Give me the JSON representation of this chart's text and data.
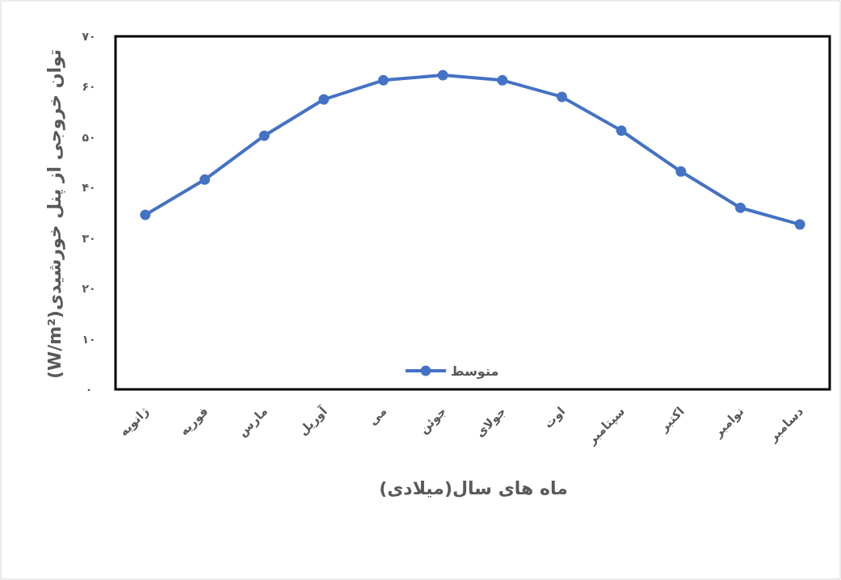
{
  "chart_data": {
    "type": "line",
    "xlabel": "ماه های سال(میلادی)",
    "ylabel": "توان خروجی از پنل خورشیدی(W/m²)",
    "categories": [
      "ژانویه",
      "فوریه",
      "مارس",
      "آوریل",
      "می",
      "جوئن",
      "جولای",
      "اوت",
      "سپتامبر",
      "اکتبر",
      "نوامبر",
      "دسامبر"
    ],
    "series": [
      {
        "name": "متوسط",
        "color": "#4472c4",
        "values": [
          34.6,
          41.6,
          50.3,
          57.5,
          61.3,
          62.3,
          61.3,
          58.0,
          51.3,
          43.2,
          36.0,
          32.7
        ]
      }
    ],
    "ylim": [
      0,
      70
    ],
    "yticks": [
      {
        "value": 0,
        "label": "۰"
      },
      {
        "value": 10,
        "label": "۱۰"
      },
      {
        "value": 20,
        "label": "۲۰"
      },
      {
        "value": 30,
        "label": "۳۰"
      },
      {
        "value": 40,
        "label": "۴۰"
      },
      {
        "value": 50,
        "label": "۵۰"
      },
      {
        "value": 60,
        "label": "۶۰"
      },
      {
        "value": 70,
        "label": "۷۰"
      }
    ],
    "grid": false,
    "legend": "bottom",
    "marker": "circle",
    "line_style": "solid"
  }
}
